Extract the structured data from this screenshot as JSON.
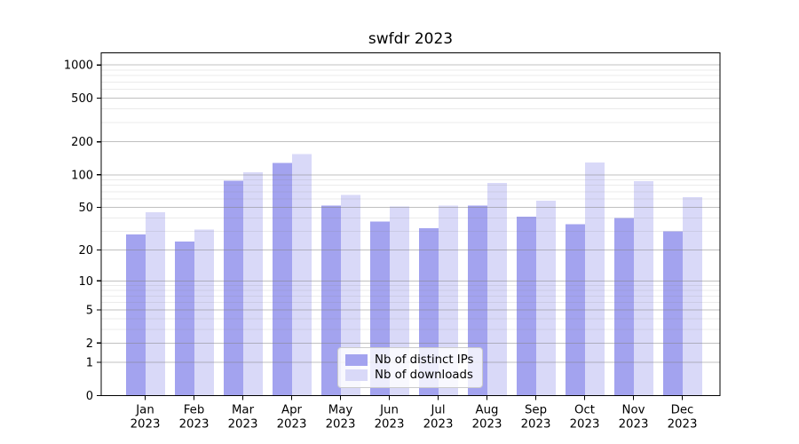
{
  "title": "swfdr 2023",
  "legend": {
    "items": [
      {
        "label": "Nb of distinct IPs",
        "color": "#a3a3ef"
      },
      {
        "label": "Nb of downloads",
        "color": "#d9d9f8"
      }
    ]
  },
  "chart_data": {
    "type": "bar",
    "title": "swfdr 2023",
    "yscale": "log1p",
    "categories": [
      "Jan 2023",
      "Feb 2023",
      "Mar 2023",
      "Apr 2023",
      "May 2023",
      "Jun 2023",
      "Jul 2023",
      "Aug 2023",
      "Sep 2023",
      "Oct 2023",
      "Nov 2023",
      "Dec 2023"
    ],
    "series": [
      {
        "name": "Nb of distinct IPs",
        "color": "#a3a3ef",
        "values": [
          28,
          24,
          88,
          128,
          52,
          37,
          32,
          52,
          41,
          35,
          40,
          30
        ]
      },
      {
        "name": "Nb of downloads",
        "color": "#d9d9f8",
        "values": [
          45,
          31,
          105,
          155,
          65,
          51,
          52,
          84,
          58,
          130,
          87,
          62
        ]
      }
    ],
    "xlabel": "",
    "ylabel": "",
    "y_ticks": [
      1000,
      500,
      200,
      100,
      50,
      20,
      10,
      5,
      2,
      1,
      0
    ],
    "minor_grid_values": [
      3,
      4,
      6,
      7,
      8,
      9,
      30,
      40,
      60,
      70,
      80,
      90,
      300,
      400,
      600,
      700,
      800,
      900
    ],
    "ylim": [
      0,
      1290
    ],
    "grid": "both",
    "legend_position": "lower-center"
  }
}
